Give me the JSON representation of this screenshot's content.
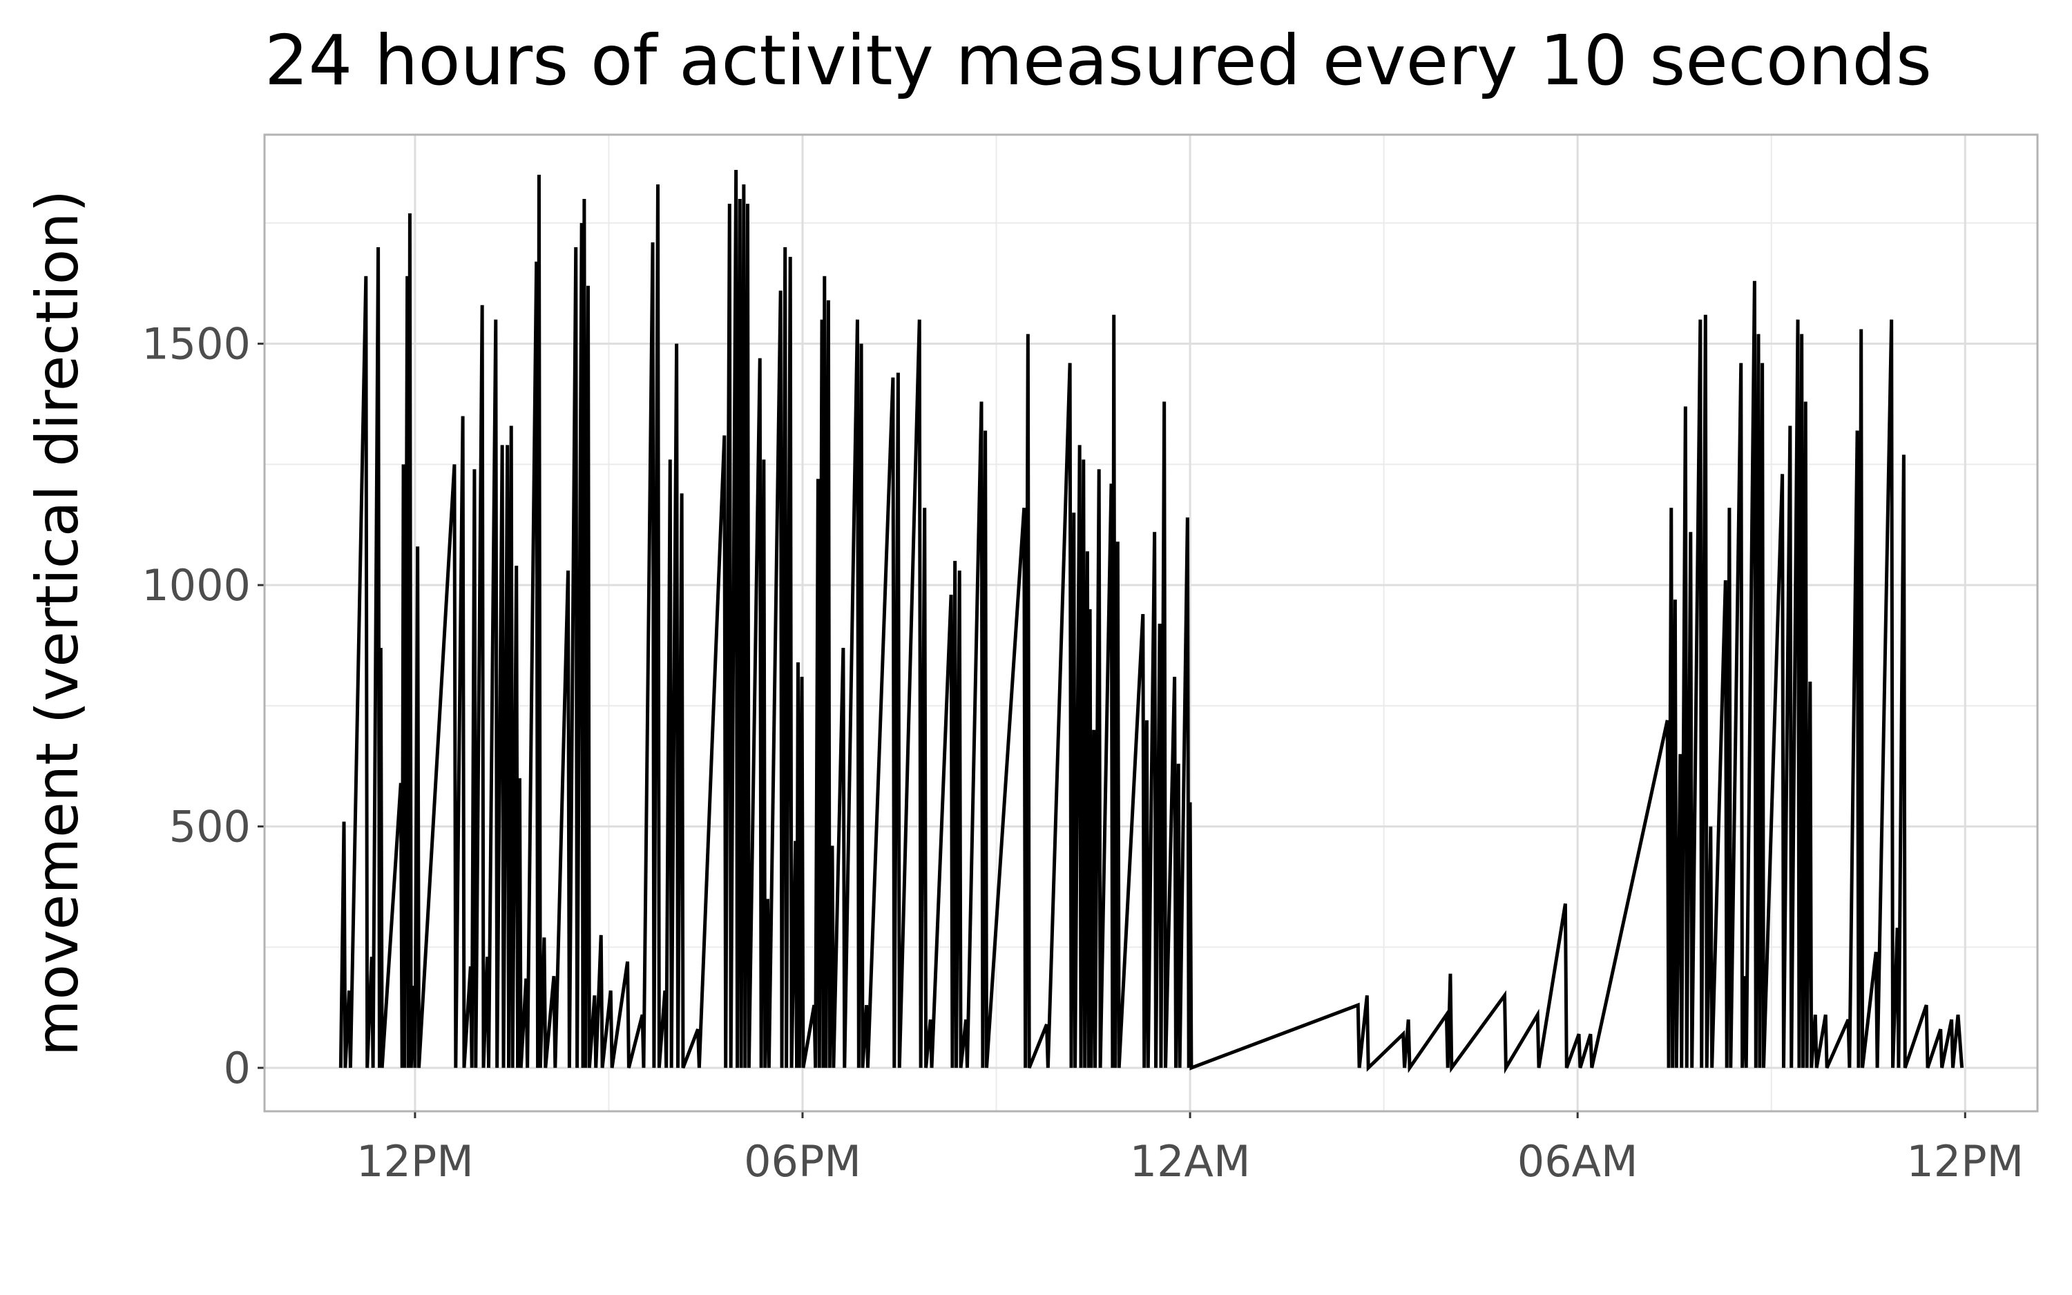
{
  "chart_data": {
    "type": "line",
    "title": "24 hours of activity measured every 10 seconds",
    "y_label": "movement (vertical direction)",
    "xlim": [
      9.67,
      37.12
    ],
    "xticks": [
      {
        "value": 12,
        "label": "12PM"
      },
      {
        "value": 18,
        "label": "06PM"
      },
      {
        "value": 24,
        "label": "12AM"
      },
      {
        "value": 30,
        "label": "06AM"
      },
      {
        "value": 36,
        "label": "12PM"
      }
    ],
    "ylim": [
      -90,
      1933
    ],
    "yticks": [
      0,
      500,
      1000,
      1500
    ],
    "grid": true,
    "color": "#000000",
    "x": [
      10.85,
      10.9,
      10.92,
      10.98,
      11.0,
      11.24,
      11.26,
      11.33,
      11.35,
      11.43,
      11.45,
      11.47,
      11.49,
      11.78,
      11.8,
      11.82,
      11.84,
      11.88,
      11.9,
      11.92,
      11.94,
      11.98,
      12.0,
      12.04,
      12.06,
      12.61,
      12.63,
      12.74,
      12.76,
      12.86,
      12.88,
      12.92,
      12.94,
      13.04,
      13.06,
      13.12,
      13.14,
      13.25,
      13.27,
      13.35,
      13.37,
      13.43,
      13.45,
      13.49,
      13.51,
      13.57,
      13.59,
      13.62,
      13.64,
      13.72,
      13.74,
      13.88,
      13.9,
      13.92,
      13.94,
      14.0,
      14.02,
      14.15,
      14.17,
      14.37,
      14.39,
      14.49,
      14.51,
      14.58,
      14.6,
      14.62,
      14.64,
      14.68,
      14.7,
      14.78,
      14.8,
      14.88,
      14.9,
      15.03,
      15.05,
      15.29,
      15.31,
      15.52,
      15.54,
      15.68,
      15.7,
      15.76,
      15.78,
      15.87,
      15.89,
      15.95,
      15.97,
      16.05,
      16.07,
      16.13,
      16.15,
      16.38,
      16.4,
      16.79,
      16.81,
      16.87,
      16.89,
      16.97,
      16.99,
      17.03,
      17.05,
      17.09,
      17.11,
      17.15,
      17.17,
      17.34,
      17.36,
      17.4,
      17.42,
      17.46,
      17.48,
      17.66,
      17.68,
      17.73,
      17.75,
      17.81,
      17.83,
      17.89,
      17.91,
      17.93,
      17.95,
      17.99,
      18.01,
      18.18,
      18.2,
      18.24,
      18.26,
      18.3,
      18.32,
      18.34,
      18.36,
      18.4,
      18.42,
      18.46,
      18.48,
      18.63,
      18.65,
      18.85,
      18.87,
      18.91,
      18.93,
      18.99,
      19.01,
      19.4,
      19.42,
      19.48,
      19.5,
      19.81,
      19.83,
      19.89,
      19.91,
      19.98,
      20.0,
      20.3,
      20.32,
      20.36,
      20.38,
      20.43,
      20.45,
      20.53,
      20.55,
      20.77,
      20.79,
      20.83,
      20.85,
      21.43,
      21.45,
      21.49,
      21.51,
      21.78,
      21.8,
      22.14,
      22.16,
      22.2,
      22.22,
      22.29,
      22.31,
      22.35,
      22.37,
      22.41,
      22.43,
      22.45,
      22.47,
      22.51,
      22.53,
      22.59,
      22.61,
      22.78,
      22.8,
      22.82,
      22.84,
      22.88,
      22.9,
      23.27,
      23.29,
      23.33,
      23.35,
      23.45,
      23.47,
      23.53,
      23.55,
      23.6,
      23.62,
      23.76,
      23.78,
      23.82,
      23.84,
      23.96,
      23.98,
      24.0,
      24.02,
      26.6,
      26.62,
      26.74,
      26.76,
      27.3,
      27.32,
      27.38,
      27.4,
      27.97,
      27.99,
      28.03,
      28.05,
      28.87,
      28.89,
      29.38,
      29.4,
      29.81,
      29.83,
      30.02,
      30.04,
      30.2,
      30.22,
      31.39,
      31.41,
      31.45,
      31.47,
      31.51,
      31.53,
      31.59,
      31.61,
      31.67,
      31.69,
      31.75,
      31.77,
      31.9,
      31.92,
      31.98,
      32.0,
      32.06,
      32.08,
      32.29,
      32.31,
      32.35,
      32.37,
      32.53,
      32.55,
      32.59,
      32.61,
      32.74,
      32.76,
      32.8,
      32.82,
      32.86,
      32.88,
      33.17,
      33.19,
      33.29,
      33.31,
      33.41,
      33.43,
      33.47,
      33.49,
      33.53,
      33.55,
      33.6,
      33.62,
      33.68,
      33.7,
      33.84,
      33.86,
      34.19,
      34.21,
      34.33,
      34.35,
      34.39,
      34.41,
      34.62,
      34.64,
      34.86,
      34.88,
      34.95,
      34.97,
      35.05,
      35.07,
      35.4,
      35.42,
      35.62,
      35.64,
      35.79,
      35.81,
      35.89,
      35.95
    ],
    "values": [
      0,
      510,
      0,
      160,
      0,
      1640,
      0,
      230,
      0,
      1700,
      0,
      870,
      0,
      590,
      0,
      1250,
      0,
      1640,
      0,
      1770,
      0,
      170,
      0,
      1080,
      0,
      1250,
      0,
      1350,
      0,
      210,
      0,
      1240,
      0,
      1580,
      0,
      230,
      0,
      1550,
      0,
      1290,
      0,
      1290,
      0,
      1330,
      0,
      1040,
      0,
      600,
      0,
      185,
      0,
      1670,
      0,
      1850,
      0,
      270,
      0,
      190,
      0,
      1030,
      0,
      1700,
      0,
      1750,
      0,
      1800,
      0,
      1620,
      0,
      150,
      0,
      275,
      0,
      160,
      0,
      220,
      0,
      110,
      0,
      1710,
      0,
      1830,
      0,
      160,
      0,
      1260,
      0,
      1500,
      0,
      1190,
      0,
      80,
      0,
      1310,
      0,
      1790,
      0,
      1860,
      0,
      1800,
      0,
      1830,
      0,
      1790,
      0,
      1470,
      0,
      1260,
      0,
      350,
      0,
      1610,
      0,
      1700,
      0,
      1680,
      0,
      470,
      0,
      840,
      0,
      810,
      0,
      130,
      0,
      1220,
      0,
      1550,
      0,
      1640,
      0,
      1590,
      0,
      460,
      0,
      870,
      0,
      1550,
      0,
      1500,
      0,
      130,
      0,
      1430,
      0,
      1440,
      0,
      1550,
      0,
      1160,
      0,
      100,
      0,
      980,
      0,
      1050,
      0,
      1030,
      0,
      100,
      0,
      1380,
      0,
      1320,
      0,
      1160,
      0,
      1520,
      0,
      90,
      0,
      1460,
      0,
      1150,
      0,
      1290,
      0,
      1260,
      0,
      1070,
      0,
      950,
      0,
      700,
      0,
      1240,
      0,
      1210,
      0,
      1560,
      0,
      1090,
      0,
      940,
      0,
      720,
      0,
      1110,
      0,
      920,
      0,
      1380,
      0,
      810,
      0,
      630,
      0,
      1140,
      0,
      550,
      0,
      130,
      0,
      150,
      0,
      70,
      0,
      100,
      0,
      110,
      0,
      195,
      0,
      150,
      0,
      110,
      0,
      340,
      0,
      70,
      0,
      70,
      0,
      720,
      0,
      1160,
      0,
      970,
      0,
      650,
      0,
      1370,
      0,
      1110,
      0,
      1550,
      0,
      1560,
      0,
      500,
      0,
      1010,
      0,
      1160,
      0,
      1460,
      0,
      190,
      0,
      1630,
      0,
      1520,
      0,
      1460,
      0,
      1230,
      0,
      1330,
      0,
      1550,
      0,
      1520,
      0,
      1380,
      0,
      800,
      0,
      110,
      0,
      110,
      0,
      100,
      0,
      1320,
      0,
      1530,
      0,
      240,
      0,
      1550,
      0,
      290,
      0,
      1270,
      0,
      130,
      0,
      80,
      0,
      100,
      0,
      110,
      0
    ]
  }
}
